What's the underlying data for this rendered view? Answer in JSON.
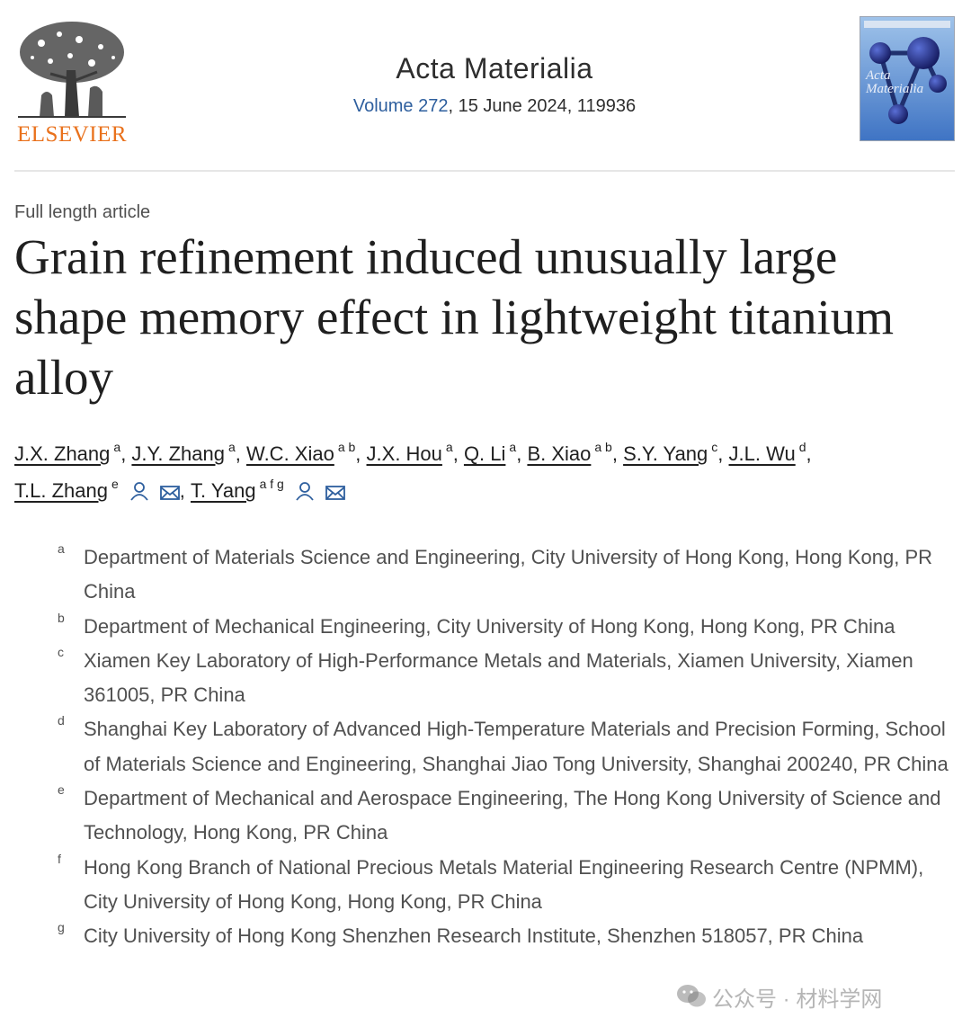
{
  "publisher": {
    "name": "ELSEVIER",
    "color": "#e9711c"
  },
  "journal": {
    "title": "Acta Materialia",
    "volume_link": "Volume 272",
    "issue_rest": ", 15 June 2024, 119936",
    "cover_title": "Acta Materialia",
    "link_color": "#2e5f9e"
  },
  "article": {
    "type": "Full length article",
    "title": "Grain refinement induced unusually large shape memory effect in lightweight titanium alloy"
  },
  "authors": [
    {
      "name": "J.X. Zhang",
      "sup": "a",
      "sep": ", "
    },
    {
      "name": "J.Y. Zhang",
      "sup": "a",
      "sep": ", "
    },
    {
      "name": "W.C. Xiao",
      "sup": "a b",
      "sep": ", "
    },
    {
      "name": "J.X. Hou",
      "sup": "a",
      "sep": ", "
    },
    {
      "name": "Q. Li",
      "sup": "a",
      "sep": ", "
    },
    {
      "name": "B. Xiao",
      "sup": "a b",
      "sep": ", "
    },
    {
      "name": "S.Y. Yang",
      "sup": "c",
      "sep": ", "
    },
    {
      "name": "J.L. Wu",
      "sup": "d",
      "sep": ", "
    },
    {
      "name": "T.L. Zhang",
      "sup": "e",
      "sep": ", ",
      "icons": [
        "person-icon",
        "mail-icon"
      ]
    },
    {
      "name": "T. Yang",
      "sup": "a f g",
      "sep": "",
      "icons": [
        "person-icon",
        "mail-icon"
      ]
    }
  ],
  "affiliations": [
    {
      "label": "a",
      "text": "Department of Materials Science and Engineering, City University of Hong Kong, Hong Kong, PR China"
    },
    {
      "label": "b",
      "text": "Department of Mechanical Engineering, City University of Hong Kong, Hong Kong, PR China"
    },
    {
      "label": "c",
      "text": "Xiamen Key Laboratory of High-Performance Metals and Materials, Xiamen University, Xiamen 361005, PR China"
    },
    {
      "label": "d",
      "text": "Shanghai Key Laboratory of Advanced High-Temperature Materials and Precision Forming, School of Materials Science and Engineering, Shanghai Jiao Tong University, Shanghai 200240, PR China"
    },
    {
      "label": "e",
      "text": "Department of Mechanical and Aerospace Engineering, The Hong Kong University of Science and Technology, Hong Kong, PR China"
    },
    {
      "label": "f",
      "text": "Hong Kong Branch of National Precious Metals Material Engineering Research Centre (NPMM), City University of Hong Kong, Hong Kong, PR China"
    },
    {
      "label": "g",
      "text": "City University of Hong Kong Shenzhen Research Institute, Shenzhen 518057, PR China"
    }
  ],
  "watermark": {
    "text": "公众号 · 材料学网"
  }
}
